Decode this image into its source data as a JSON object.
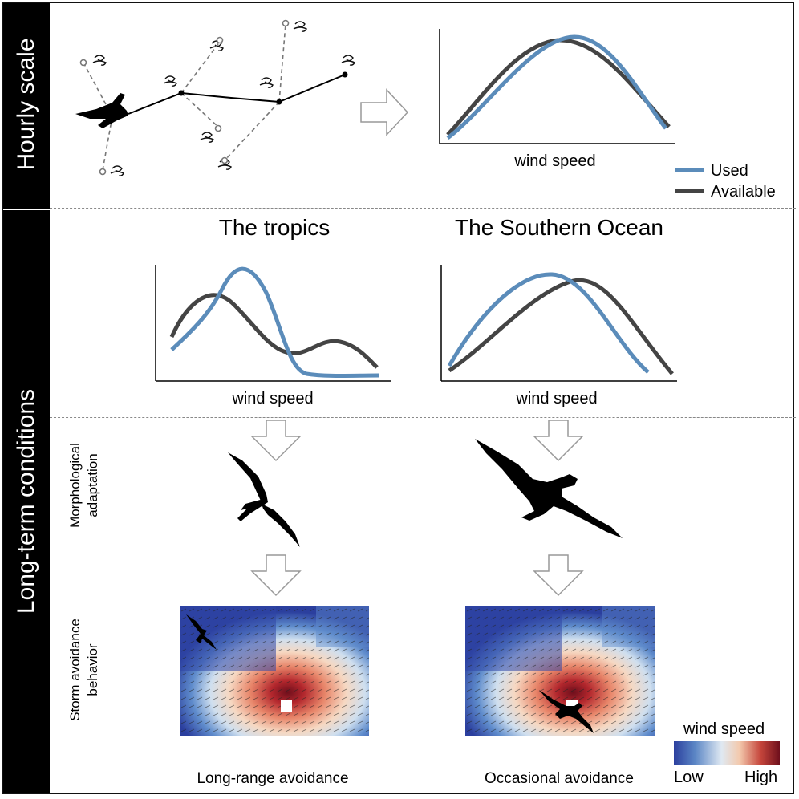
{
  "sidebar": {
    "hourly_scale": "Hourly scale",
    "long_term": "Long-term conditions"
  },
  "sub_labels": {
    "morphological_line1": "Morphological",
    "morphological_line2": "adaptation",
    "storm_line1": "Storm avoidance",
    "storm_line2": "behavior"
  },
  "regions": {
    "tropics": "The tropics",
    "southern_ocean": "The Southern Ocean"
  },
  "axis_label": "wind speed",
  "legend": {
    "used": "Used",
    "available": "Available",
    "used_color": "#5b8cba",
    "available_color": "#444444"
  },
  "captions": {
    "long_range": "Long-range avoidance",
    "occasional": "Occasional avoidance"
  },
  "colorbar": {
    "title": "wind speed",
    "low": "Low",
    "high": "High",
    "colors": [
      "#2b3f9e",
      "#5b86c5",
      "#dfe9f2",
      "#f3c9ad",
      "#c5453b",
      "#6e0f1c"
    ]
  },
  "icons": {
    "bird": "bird-silhouette-icon",
    "frigatebird": "frigatebird-icon",
    "albatross": "albatross-icon",
    "wind": "wind-gust-icon",
    "arrow": "arrow-icon"
  }
}
